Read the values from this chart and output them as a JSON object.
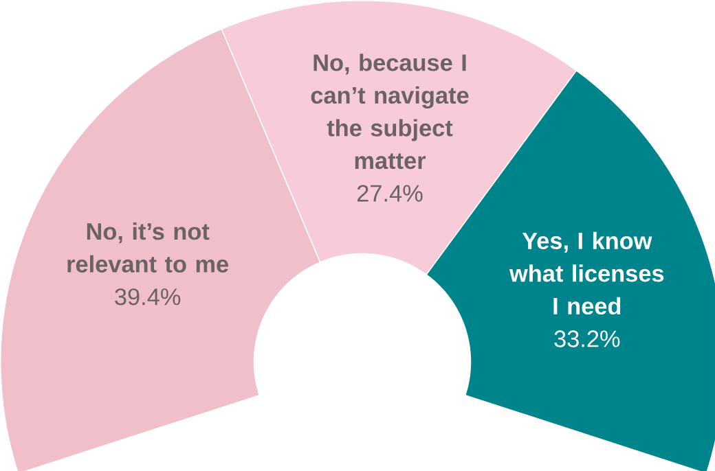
{
  "chart_data": {
    "type": "donut",
    "categories": [
      "No, it’s not relevant to me",
      "No, because I can’t navigate the subject matter",
      "Yes, I know what licenses I need"
    ],
    "values": [
      39.4,
      27.4,
      33.2
    ],
    "value_labels": [
      "39.4%",
      "27.4%",
      "33.2%"
    ],
    "colors": [
      "#f0bfca",
      "#f7ccd8",
      "#00848c"
    ]
  }
}
